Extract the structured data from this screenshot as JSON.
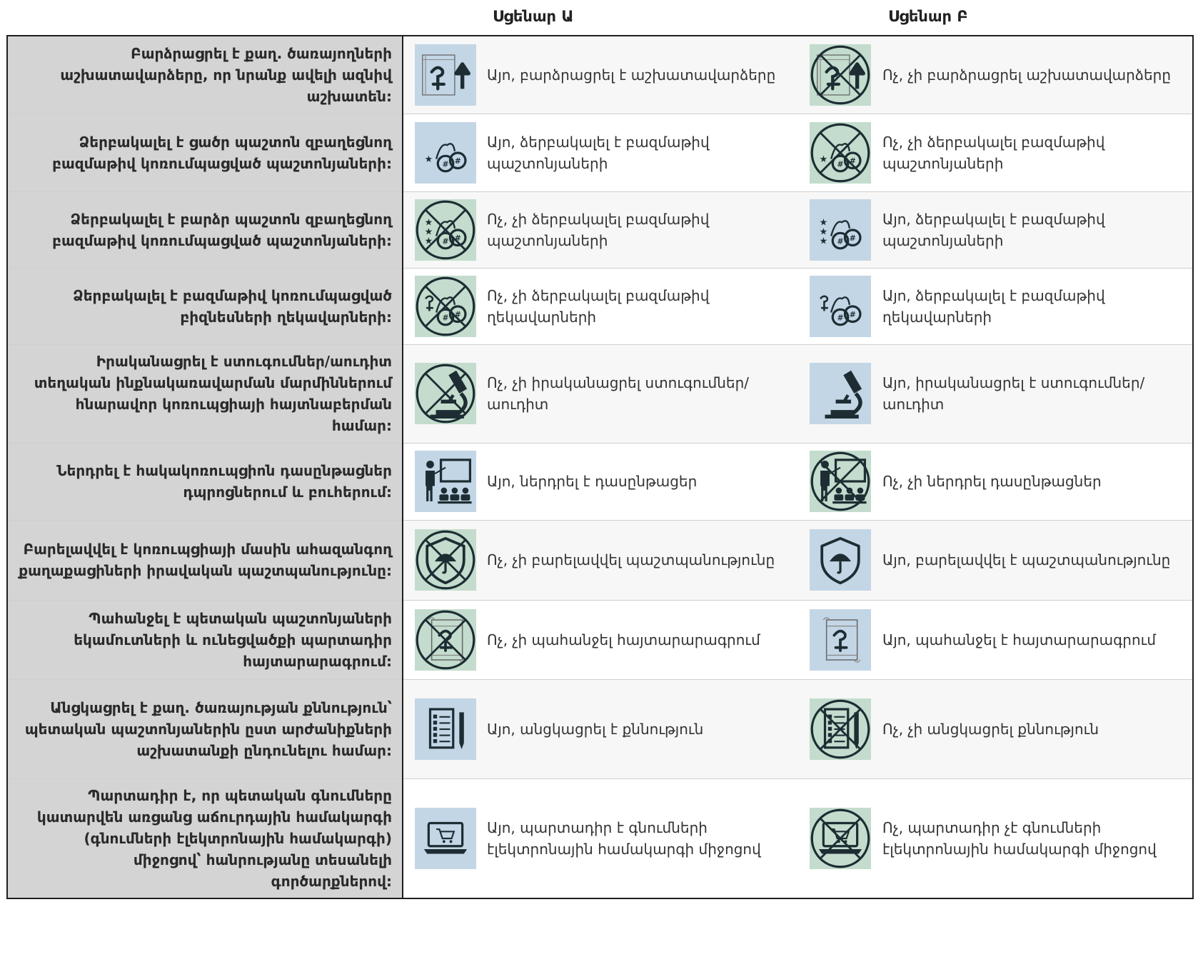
{
  "header": {
    "scenario_a": "Սցենար Ա",
    "scenario_b": "Սցենար Բ"
  },
  "colors": {
    "yes_tile": "#c3d6e6",
    "no_tile": "#c3dccd",
    "question_bg": "#d4d4d4",
    "border": "#1f1f1f"
  },
  "rows": [
    {
      "question": "Բարձրացրել է քաղ. ծառայողների աշխատավարձերը, որ նրանք ավելի ազնիվ աշխատեն:",
      "a": {
        "text": "Այո, բարձրացրել է աշխատավարձերը",
        "icon": "salary-increase-icon",
        "no": false
      },
      "b": {
        "text": "Ոչ, չի բարձրացրել աշխատավարձերը",
        "icon": "salary-increase-crossed-icon",
        "no": true
      }
    },
    {
      "question": "Ձերբակալել է ցածր պաշտոն զբաղեցնող բազմաթիվ կոռումպացված պաշտոնյաների:",
      "a": {
        "text": "Այո, ձերբակալել է բազմաթիվ պաշտոնյաների",
        "icon": "handcuffs-one-star-icon",
        "no": false
      },
      "b": {
        "text": "Ոչ, չի ձերբակալել բազմաթիվ պաշտոնյաների",
        "icon": "handcuffs-one-star-crossed-icon",
        "no": true
      }
    },
    {
      "question": "Ձերբակալել է բարձր պաշտոն զբաղեցնող բազմաթիվ կոռումպացված պաշտոնյաների:",
      "a": {
        "text": "Ոչ, չի ձերբակալել բազմաթիվ պաշտոնյաների",
        "icon": "handcuffs-three-stars-crossed-icon",
        "no": true
      },
      "b": {
        "text": "Այո, ձերբակալել է բազմաթիվ պաշտոնյաների",
        "icon": "handcuffs-three-stars-icon",
        "no": false
      }
    },
    {
      "question": "Ձերբակալել է բազմաթիվ կոռումպացված բիզնեսների ղեկավարների:",
      "a": {
        "text": "Ոչ, չի ձերբակալել բազմաթիվ ղեկավարների",
        "icon": "handcuffs-business-crossed-icon",
        "no": true
      },
      "b": {
        "text": "Այո, ձերբակալել է բազմաթիվ ղեկավարների",
        "icon": "handcuffs-business-icon",
        "no": false
      }
    },
    {
      "question": "Իրականացրել է ստուգումներ/աուդիտ տեղական ինքնակառավարման մարմիններում հնարավոր կոռուպցիայի հայտնաբերման համար:",
      "a": {
        "text": "Ոչ, չի իրականացրել ստուգումներ/աուդիտ",
        "icon": "microscope-crossed-icon",
        "no": true
      },
      "b": {
        "text": "Այո, իրականացրել է ստուգումներ/աուդիտ",
        "icon": "microscope-icon",
        "no": false
      }
    },
    {
      "question": "Ներդրել է հակակոռուպցիոն դասընթացներ դպրոցներում և բուհերում:",
      "a": {
        "text": "Այո, ներդրել է դասընթացեր",
        "icon": "teacher-board-icon",
        "no": false
      },
      "b": {
        "text": "Ոչ, չի ներդրել դասընթացներ",
        "icon": "teacher-board-crossed-icon",
        "no": true
      }
    },
    {
      "question": "Բարելավվել է կոռուպցիայի մասին ահազանգող քաղաքացիների իրավական պաշտպանությունը:",
      "a": {
        "text": "Ոչ, չի բարելավվել պաշտպանությունը",
        "icon": "shield-umbrella-crossed-icon",
        "no": true
      },
      "b": {
        "text": "Այո, բարելավվել է պաշտպանությունը",
        "icon": "shield-umbrella-icon",
        "no": false
      }
    },
    {
      "question": "Պահանջել է պետական պաշտոնյաների եկամուտների և ունեցվածքի պարտադիր հայտարարագրում:",
      "a": {
        "text": "Ոչ, չի պահանջել հայտարարագրում",
        "icon": "declaration-scroll-crossed-icon",
        "no": true
      },
      "b": {
        "text": "Այո, պահանջել է հայտարարագրում",
        "icon": "declaration-scroll-icon",
        "no": false
      }
    },
    {
      "question": "Անցկացրել է քաղ. ծառայության քննություն՝ պետական պաշտոնյաներին ըստ արժանիքների աշխատանքի ընդունելու համար:",
      "a": {
        "text": "Այո, անցկացրել է քննություն",
        "icon": "exam-sheet-icon",
        "no": false
      },
      "b": {
        "text": "Ոչ, չի անցկացրել քննություն",
        "icon": "exam-sheet-crossed-icon",
        "no": true
      }
    },
    {
      "question": "Պարտադիր է, որ պետական գնումները կատարվեն առցանց աճուրդային համակարգի (գնումների էլեկտրոնային համակարգի) միջոցով՝ հանրությանը տեսանելի գործարքներով:",
      "a": {
        "text": "Այո, պարտադիր է գնումների էլեկտրոնային համակարգի միջոցով",
        "icon": "laptop-cart-icon",
        "no": false
      },
      "b": {
        "text": "Ոչ, պարտադիր չէ գնումների էլեկտրոնային համակարգի միջոցով",
        "icon": "laptop-cart-crossed-icon",
        "no": true
      }
    }
  ]
}
